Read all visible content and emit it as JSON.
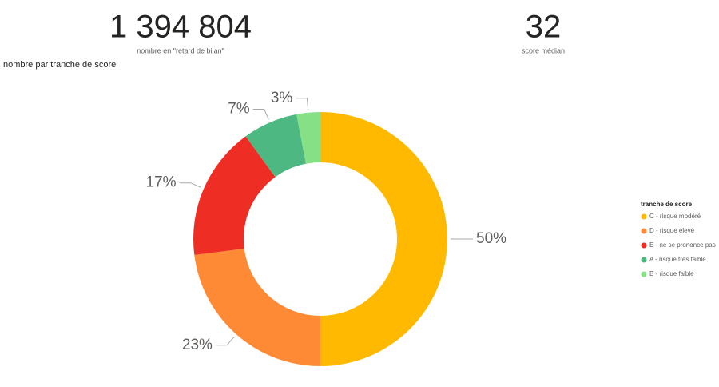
{
  "kpis": [
    {
      "value": "1 394 804",
      "label": "nombre en \"retard de bilan\""
    },
    {
      "value": "32",
      "label": "score médian"
    }
  ],
  "chart_data": {
    "type": "donut",
    "title": "nombre par tranche de score",
    "legend_title": "tranche de score",
    "legend": "right",
    "categories": [
      "C - risque modéré",
      "D - risque élevé",
      "E - ne se prononce pas",
      "A - risque très faible",
      "B - risque faible"
    ],
    "values": [
      50,
      23,
      17,
      7,
      3
    ],
    "value_labels": [
      "50%",
      "23%",
      "17%",
      "7%",
      "3%"
    ],
    "colors": [
      "#FFB900",
      "#FF8A36",
      "#EE2D24",
      "#4DB881",
      "#86E086"
    ]
  }
}
